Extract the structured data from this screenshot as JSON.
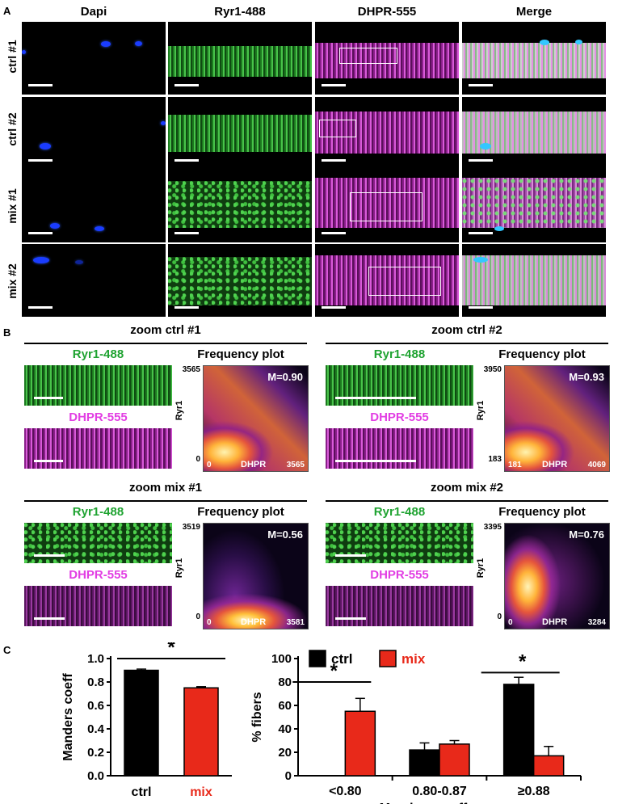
{
  "panels": {
    "a": "A",
    "b": "B",
    "c": "C"
  },
  "panel_a": {
    "columns": [
      {
        "label": "Dapi",
        "color": "#1f3fe0"
      },
      {
        "label": "Ryr1-488",
        "color": "#1fa331"
      },
      {
        "label": "DHPR-555",
        "color": "#e23ee3"
      },
      {
        "label": "Merge",
        "color": "#000000"
      }
    ],
    "rows": [
      "ctrl #1",
      "ctrl #2",
      "mix #1",
      "mix #2"
    ]
  },
  "panel_b": {
    "zooms": [
      {
        "title": "zoom ctrl #1",
        "ryr_label": "Ryr1-488",
        "dhpr_label": "DHPR-555",
        "freq_label": "Frequency plot",
        "m": "M=0.90",
        "y_max": "3565",
        "y_min": "0",
        "x_min": "0",
        "x_max": "3565",
        "x_axis": "DHPR",
        "y_axis": "Ryr1",
        "kind": "ctrl"
      },
      {
        "title": "zoom ctrl #2",
        "ryr_label": "Ryr1-488",
        "dhpr_label": "DHPR-555",
        "freq_label": "Frequency plot",
        "m": "M=0.93",
        "y_max": "3950",
        "y_min": "183",
        "x_min": "181",
        "x_max": "4069",
        "x_axis": "DHPR",
        "y_axis": "Ryr1",
        "kind": "ctrl"
      },
      {
        "title": "zoom mix #1",
        "ryr_label": "Ryr1-488",
        "dhpr_label": "DHPR-555",
        "freq_label": "Frequency plot",
        "m": "M=0.56",
        "y_max": "3519",
        "y_min": "0",
        "x_min": "0",
        "x_max": "3581",
        "x_axis": "DHPR",
        "y_axis": "Ryr1",
        "kind": "mix1"
      },
      {
        "title": "zoom mix #2",
        "ryr_label": "Ryr1-488",
        "dhpr_label": "DHPR-555",
        "freq_label": "Frequency plot",
        "m": "M=0.76",
        "y_max": "3395",
        "y_min": "0",
        "x_min": "0",
        "x_max": "3284",
        "x_axis": "DHPR",
        "y_axis": "Ryr1",
        "kind": "mix2"
      }
    ]
  },
  "chart_data": [
    {
      "type": "bar",
      "categories": [
        "ctrl",
        "mix"
      ],
      "category_colors": [
        "#000000",
        "#e8291a"
      ],
      "label_colors": [
        "#000000",
        "#e8291a"
      ],
      "values": [
        0.9,
        0.75
      ],
      "errors": [
        0.01,
        0.01
      ],
      "ylabel": "Manders coeff",
      "ylim": [
        0,
        1.0
      ],
      "yticks": [
        "0.0",
        "0.2",
        "0.4",
        "0.6",
        "0.8",
        "1.0"
      ],
      "significance": "*"
    },
    {
      "type": "bar",
      "categories": [
        "<0.80",
        "0.80-0.87",
        "≥0.88"
      ],
      "xlabel": "Manders coeff",
      "ylabel": "% fibers",
      "ylim": [
        0,
        100
      ],
      "yticks": [
        "0",
        "20",
        "40",
        "60",
        "80",
        "100"
      ],
      "series": [
        {
          "name": "ctrl",
          "color": "#000000",
          "values": [
            0,
            22,
            78
          ],
          "errors": [
            0,
            6,
            6
          ]
        },
        {
          "name": "mix",
          "color": "#e8291a",
          "values": [
            55,
            27,
            17
          ],
          "errors": [
            11,
            3,
            8
          ]
        }
      ],
      "significance": [
        "*",
        "",
        "*"
      ],
      "legend": "top"
    }
  ]
}
